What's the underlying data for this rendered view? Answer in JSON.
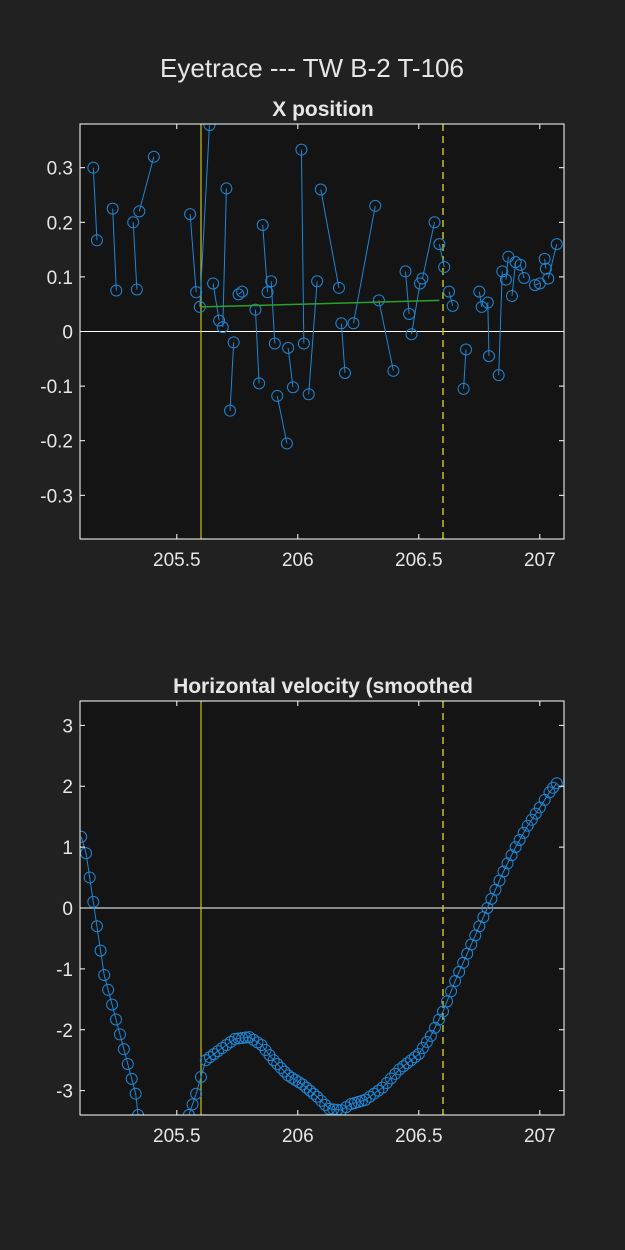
{
  "figure_title": "Eyetrace --- TW B-2 T-106",
  "colors": {
    "background": "#212121",
    "axes_background": "#141414",
    "axes_border": "#ffffff",
    "text": "#e6e6e6",
    "data_blue": "#1f86d6",
    "fit_green": "#2ca02c",
    "marker_yellow": "#c7c01f",
    "zero_line": "#ffffff"
  },
  "chart_data": [
    {
      "type": "scatter",
      "title": "X position",
      "xlim": [
        205.1,
        207.1
      ],
      "ylim": [
        -0.38,
        0.38
      ],
      "xticks": [
        205.5,
        206,
        206.5,
        207
      ],
      "xtick_labels": [
        "205.5",
        "206",
        "206.5",
        "207"
      ],
      "yticks": [
        -0.3,
        -0.2,
        -0.1,
        0,
        0.1,
        0.2,
        0.3
      ],
      "ytick_labels": [
        "-0.3",
        "-0.2",
        "-0.1",
        "0",
        "0.1",
        "0.2",
        "0.3"
      ],
      "zero_line": 0,
      "solid_vline_x": 205.6,
      "dashed_vline_x": 206.6,
      "series": [
        {
          "style": "circles-connected-in-pairs",
          "x": [
            205.155,
            205.17,
            205.235,
            205.25,
            205.32,
            205.335,
            205.345,
            205.405,
            205.555,
            205.58,
            205.595,
            205.635,
            205.65,
            205.675,
            205.69,
            205.705,
            205.72,
            205.735,
            205.755,
            205.77,
            205.825,
            205.84,
            205.855,
            205.875,
            205.89,
            205.905,
            205.915,
            205.955,
            205.96,
            205.98,
            206.015,
            206.025,
            206.045,
            206.08,
            206.095,
            206.17,
            206.18,
            206.195,
            206.23,
            206.32,
            206.335,
            206.395,
            206.445,
            206.46,
            206.47,
            206.505,
            206.515,
            206.565,
            206.585,
            206.605,
            206.625,
            206.64,
            206.685,
            206.695,
            206.75,
            206.76,
            206.785,
            206.79,
            206.83,
            206.845,
            206.86,
            206.87,
            206.885,
            206.9,
            206.92,
            206.935,
            206.98,
            207.0,
            207.02,
            207.025,
            207.035,
            207.07
          ],
          "y": [
            0.3,
            0.167,
            0.225,
            0.075,
            0.2,
            0.077,
            0.22,
            0.32,
            0.215,
            0.072,
            0.045,
            0.378,
            0.088,
            0.02,
            0.008,
            0.262,
            -0.145,
            -0.02,
            0.068,
            0.073,
            0.04,
            -0.095,
            0.195,
            0.072,
            0.092,
            -0.022,
            -0.118,
            -0.205,
            -0.03,
            -0.102,
            0.333,
            -0.022,
            -0.115,
            0.092,
            0.26,
            0.08,
            0.015,
            -0.076,
            0.015,
            0.23,
            0.057,
            -0.072,
            0.11,
            0.032,
            -0.005,
            0.088,
            0.097,
            0.2,
            0.16,
            0.118,
            0.073,
            0.047,
            -0.105,
            -0.033,
            0.073,
            0.045,
            0.053,
            -0.045,
            -0.08,
            0.11,
            0.095,
            0.137,
            0.065,
            0.127,
            0.122,
            0.098,
            0.085,
            0.088,
            0.133,
            0.115,
            0.097,
            0.16
          ]
        },
        {
          "style": "line",
          "x": [
            205.6,
            206.585
          ],
          "y": [
            0.045,
            0.057
          ]
        }
      ]
    },
    {
      "type": "line",
      "title": "Horizontal velocity (smoothed",
      "xlim": [
        205.1,
        207.1
      ],
      "ylim": [
        -3.4,
        3.4
      ],
      "xticks": [
        205.5,
        206,
        206.5,
        207
      ],
      "xtick_labels": [
        "205.5",
        "206",
        "206.5",
        "207"
      ],
      "yticks": [
        -3,
        -2,
        -1,
        0,
        1,
        2,
        3
      ],
      "ytick_labels": [
        "-3",
        "-2",
        "-1",
        "0",
        "1",
        "2",
        "3"
      ],
      "zero_line": 0,
      "solid_vline_x": 205.6,
      "dashed_vline_x": 206.6,
      "series": [
        {
          "style": "line-with-circle-markers",
          "x": [
            205.105,
            205.125,
            205.2,
            205.33,
            205.34
          ],
          "y": [
            1.17,
            0.9,
            -1.1,
            -3.05,
            -3.4
          ]
        },
        {
          "style": "line-with-circle-markers",
          "x": [
            205.55,
            205.58,
            205.62,
            205.67,
            205.74,
            205.8,
            205.85,
            205.9,
            205.96,
            206.02,
            206.08,
            206.13,
            206.18,
            206.22,
            206.28,
            206.35,
            206.42,
            206.5,
            206.55,
            206.6,
            206.65,
            206.7,
            206.75,
            206.8,
            206.85,
            206.9,
            206.95,
            207.0,
            207.04,
            207.07
          ],
          "y": [
            -3.4,
            -3.05,
            -2.5,
            -2.35,
            -2.15,
            -2.12,
            -2.25,
            -2.5,
            -2.75,
            -2.9,
            -3.1,
            -3.3,
            -3.32,
            -3.22,
            -3.15,
            -2.95,
            -2.65,
            -2.4,
            -2.1,
            -1.7,
            -1.2,
            -0.75,
            -0.3,
            0.15,
            0.6,
            1.0,
            1.35,
            1.65,
            1.9,
            2.05
          ]
        }
      ]
    }
  ]
}
